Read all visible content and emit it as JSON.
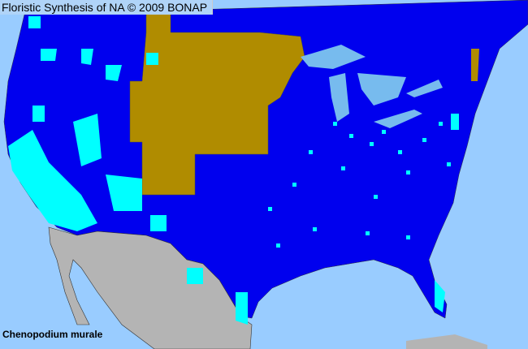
{
  "header": {
    "title": "Floristic Synthesis of NA © 2009 BONAP"
  },
  "map": {
    "species": "Chenopodium murale",
    "colors": {
      "ocean": "#99ccff",
      "present_in_state": "#0000ee",
      "county_present": "#00ffff",
      "not_present_state": "#b08c00",
      "outside_region": "#b4b4b4",
      "lake": "#77bbee"
    }
  }
}
